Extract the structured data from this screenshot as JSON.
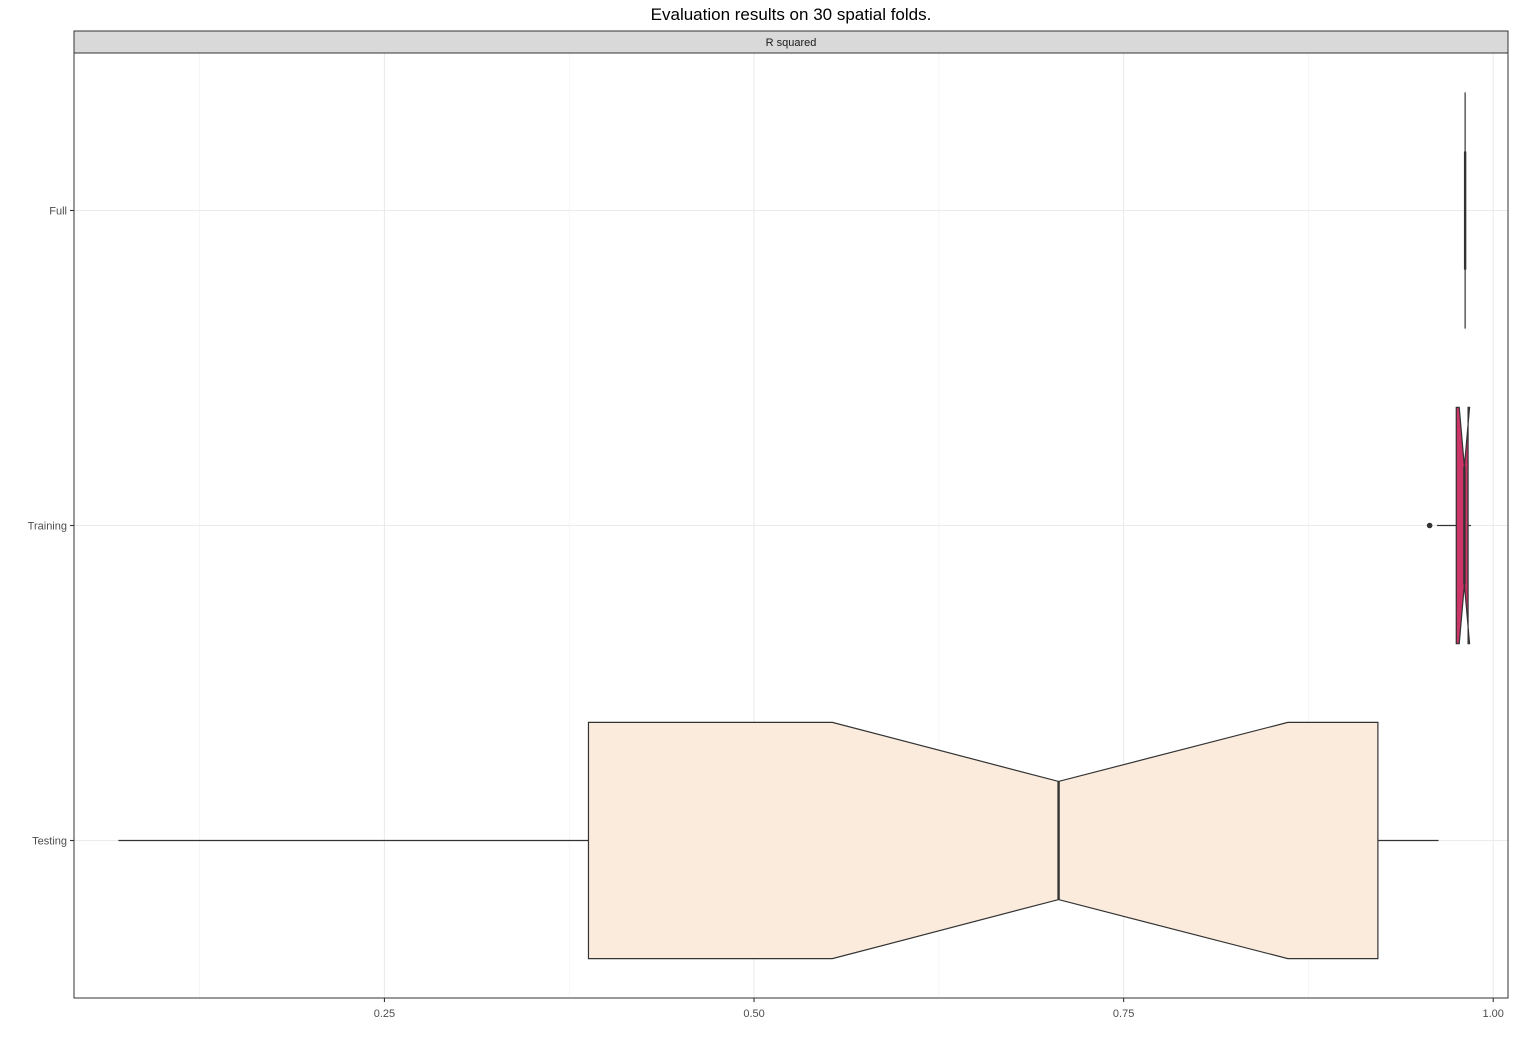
{
  "chart_data": {
    "type": "boxplot",
    "orientation": "horizontal",
    "title": "Evaluation results on 30 spatial folds.",
    "facet_label": "R squared",
    "xlabel": "",
    "ylabel": "",
    "xlim": [
      0.04,
      1.01
    ],
    "x_ticks": [
      0.25,
      0.5,
      0.75,
      1.0
    ],
    "x_tick_labels": [
      "0.25",
      "0.50",
      "0.75",
      "1.00"
    ],
    "categories": [
      "Full",
      "Training",
      "Testing"
    ],
    "grid": true,
    "notched": true,
    "series": [
      {
        "name": "Full",
        "min": 0.981,
        "q1": 0.981,
        "median": 0.981,
        "q3": 0.981,
        "max": 0.981,
        "notch_low": 0.981,
        "notch_high": 0.981,
        "outliers": [],
        "fill": "#4d4d4d"
      },
      {
        "name": "Training",
        "min": 0.962,
        "q1": 0.975,
        "median": 0.9805,
        "q3": 0.983,
        "max": 0.985,
        "notch_low": 0.977,
        "notch_high": 0.984,
        "outliers": [
          0.957
        ],
        "fill": "#cc3366"
      },
      {
        "name": "Testing",
        "min": 0.07,
        "q1": 0.388,
        "median": 0.706,
        "q3": 0.922,
        "max": 0.963,
        "notch_low": 0.553,
        "notch_high": 0.861,
        "outliers": [],
        "fill": "#faebdd"
      }
    ]
  }
}
